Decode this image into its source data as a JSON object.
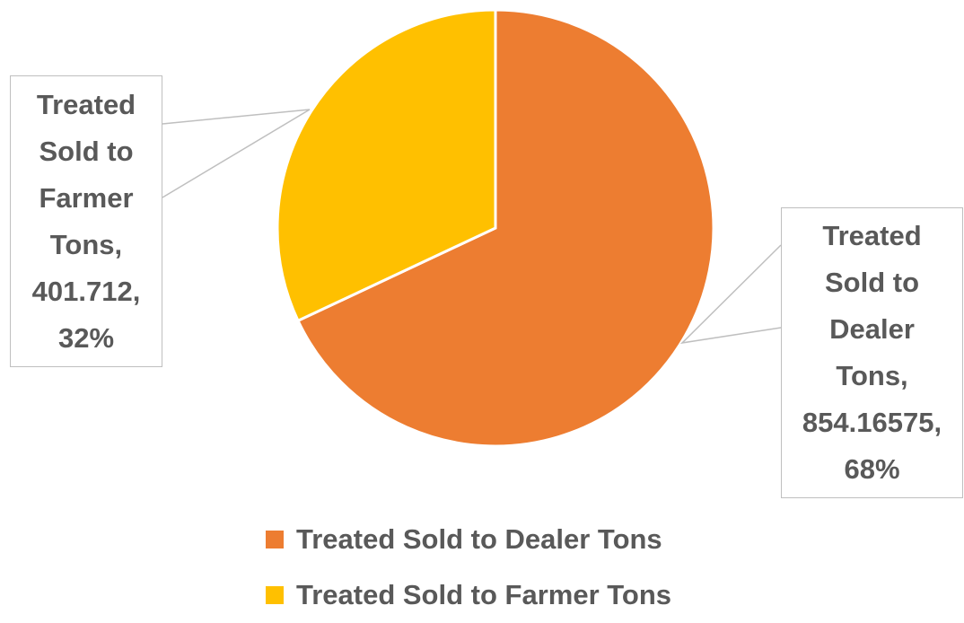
{
  "chart_data": {
    "type": "pie",
    "slices": [
      {
        "name": "Treated Sold to Dealer Tons",
        "value": 854.16575,
        "percent": "68%",
        "color": "#ED7D31",
        "label_lines": [
          "Treated",
          "Sold to",
          "Dealer",
          "Tons,",
          "854.16575,",
          "68%"
        ]
      },
      {
        "name": "Treated Sold to Farmer Tons",
        "value": 401.712,
        "percent": "32%",
        "color": "#FFC000",
        "label_lines": [
          "Treated",
          "Sold to",
          "Farmer",
          "Tons,",
          "401.712,",
          "32%"
        ]
      }
    ],
    "legend": {
      "position": "bottom",
      "items": [
        "Treated Sold to Dealer Tons",
        "Treated Sold to Farmer Tons"
      ]
    },
    "start_angle": "12 o'clock",
    "direction": "clockwise",
    "title": ""
  }
}
